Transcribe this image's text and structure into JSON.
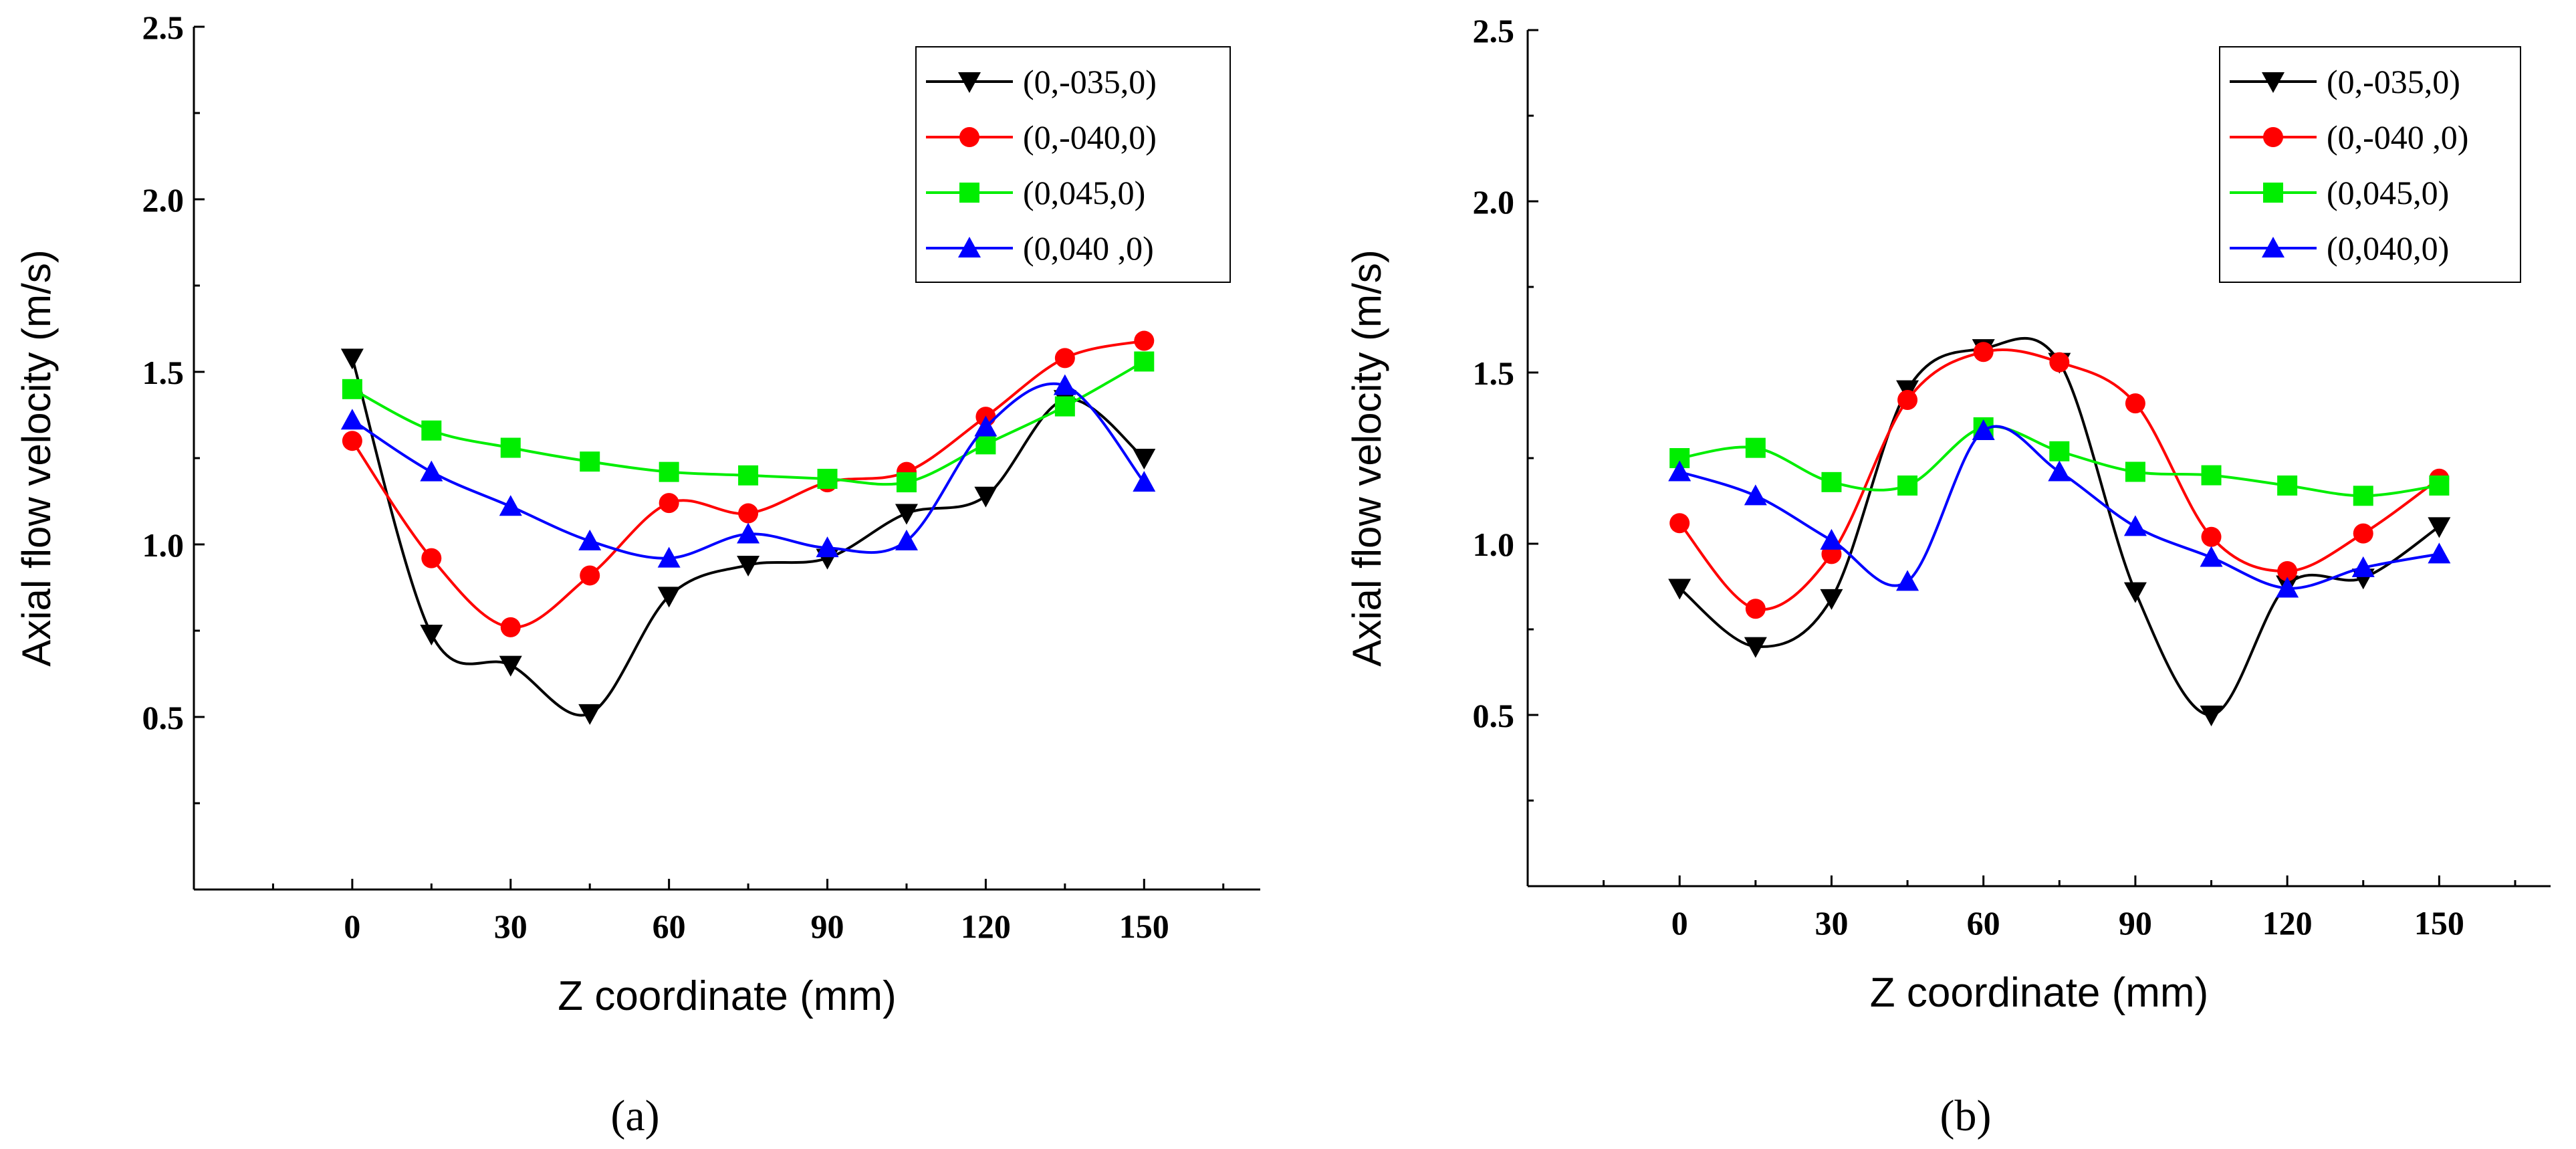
{
  "chart_data": [
    {
      "type": "line",
      "panel_label": "(a)",
      "xlabel": "Z coordinate (mm)",
      "ylabel": "Axial flow velocity  (m/s)",
      "xlim": [
        -30,
        172
      ],
      "ylim": [
        0,
        2.5
      ],
      "x_ticks": [
        0,
        30,
        60,
        90,
        120,
        150
      ],
      "x_tick_labels": [
        "0",
        "30",
        "60",
        "90",
        "120",
        "150"
      ],
      "y_ticks": [
        0.5,
        1.0,
        1.5,
        2.0,
        2.5
      ],
      "y_tick_labels": [
        "0.5",
        "1.0",
        "1.5",
        "2.0",
        "2.5"
      ],
      "legend_position": "top-right",
      "x": [
        0,
        15,
        30,
        45,
        60,
        75,
        90,
        105,
        120,
        135,
        150
      ],
      "series": [
        {
          "name": "(0,-035,0)",
          "color": "#000000",
          "marker": "triangle-down",
          "values": [
            1.54,
            0.74,
            0.65,
            0.51,
            0.85,
            0.94,
            0.96,
            1.09,
            1.14,
            1.42,
            1.25
          ]
        },
        {
          "name": "(0,-040,0)",
          "color": "#ff0000",
          "marker": "circle",
          "values": [
            1.3,
            0.96,
            0.76,
            0.91,
            1.12,
            1.09,
            1.18,
            1.21,
            1.37,
            1.54,
            1.59
          ]
        },
        {
          "name": "(0,045,0)",
          "color": "#00ee00",
          "marker": "square",
          "values": [
            1.45,
            1.33,
            1.28,
            1.24,
            1.21,
            1.2,
            1.19,
            1.18,
            1.29,
            1.4,
            1.53
          ]
        },
        {
          "name": "(0,040 ,0)",
          "color": "#0000ff",
          "marker": "triangle-up",
          "values": [
            1.36,
            1.21,
            1.11,
            1.01,
            0.96,
            1.03,
            0.99,
            1.01,
            1.34,
            1.46,
            1.18
          ]
        }
      ]
    },
    {
      "type": "line",
      "panel_label": "(b)",
      "xlabel": "Z coordinate (mm)",
      "ylabel": "Axial flow velocity  (m/s)",
      "xlim": [
        -30,
        172
      ],
      "ylim": [
        0,
        2.5
      ],
      "x_ticks": [
        0,
        30,
        60,
        90,
        120,
        150
      ],
      "x_tick_labels": [
        "0",
        "30",
        "60",
        "90",
        "120",
        "150"
      ],
      "y_ticks": [
        0.5,
        1.0,
        1.5,
        2.0,
        2.5
      ],
      "y_tick_labels": [
        "0.5",
        "1.0",
        "1.5",
        "2.0",
        "2.5"
      ],
      "legend_position": "top-right",
      "x": [
        0,
        15,
        30,
        45,
        60,
        75,
        90,
        105,
        120,
        135,
        150
      ],
      "series": [
        {
          "name": "(0,-035,0)",
          "color": "#000000",
          "marker": "triangle-down",
          "values": [
            0.87,
            0.7,
            0.84,
            1.45,
            1.57,
            1.53,
            0.86,
            0.5,
            0.88,
            0.9,
            1.05
          ]
        },
        {
          "name": "(0,-040 ,0)",
          "color": "#ff0000",
          "marker": "circle",
          "values": [
            1.06,
            0.81,
            0.97,
            1.42,
            1.56,
            1.53,
            1.41,
            1.02,
            0.92,
            1.03,
            1.19
          ]
        },
        {
          "name": "(0,045,0)",
          "color": "#00ee00",
          "marker": "square",
          "values": [
            1.25,
            1.28,
            1.18,
            1.17,
            1.34,
            1.27,
            1.21,
            1.2,
            1.17,
            1.14,
            1.17
          ]
        },
        {
          "name": "(0,040,0)",
          "color": "#0000ff",
          "marker": "triangle-up",
          "values": [
            1.21,
            1.14,
            1.01,
            0.89,
            1.33,
            1.21,
            1.05,
            0.96,
            0.87,
            0.93,
            0.97
          ]
        }
      ]
    }
  ]
}
